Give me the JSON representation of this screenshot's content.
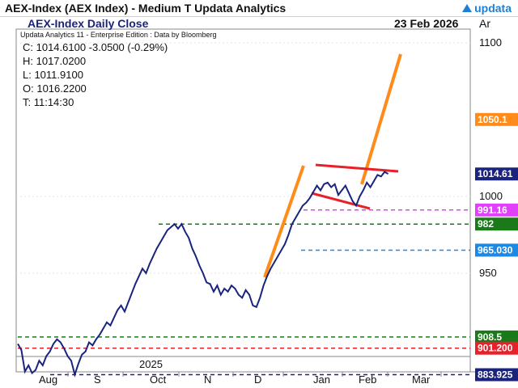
{
  "window": {
    "title": "AEX-Index (AEX Index) - Medium T  Updata Analytics",
    "brand": "updata"
  },
  "chart_header": {
    "subtitle": "AEX-Index Daily Close",
    "date": "23 Feb 2026",
    "axis_label": "Ar",
    "credit": "Updata Analytics 11 - Enterprise Edition : Data by Bloomberg"
  },
  "ohlc": [
    "C: 1014.6100  -3.0500 (-0.29%)",
    "H: 1017.0200",
    "L: 1011.9100",
    "O: 1016.2200",
    "T: 11:14:30"
  ],
  "colors": {
    "series": "#1a237e",
    "orange": "#ff8c1a",
    "red_trend": "#e8202a",
    "green": "#1a7a1a",
    "blue_dashed": "#1e88e5",
    "magenta": "#e040fb",
    "red_dashed": "#e8202a",
    "navy_dashed": "#1a237e"
  },
  "chart_data": {
    "type": "line",
    "ylim": [
      870,
      1110
    ],
    "y_ticks": [
      1100,
      1000,
      950
    ],
    "x_year_label": "2025",
    "x_months": [
      "Aug",
      "S",
      "Oct",
      "N",
      "D",
      "Jan",
      "Feb",
      "Mar"
    ],
    "series": [
      {
        "values": [
          [
            0,
            904
          ],
          [
            2,
            900
          ],
          [
            4,
            886
          ],
          [
            6,
            890
          ],
          [
            8,
            885
          ],
          [
            10,
            887
          ],
          [
            12,
            893
          ],
          [
            14,
            890
          ],
          [
            16,
            896
          ],
          [
            18,
            899
          ],
          [
            20,
            904
          ],
          [
            22,
            907
          ],
          [
            24,
            905
          ],
          [
            26,
            901
          ],
          [
            28,
            896
          ],
          [
            30,
            893
          ],
          [
            32,
            884
          ],
          [
            34,
            891
          ],
          [
            36,
            897
          ],
          [
            38,
            899
          ],
          [
            40,
            905
          ],
          [
            42,
            903
          ],
          [
            44,
            907
          ],
          [
            46,
            910
          ],
          [
            48,
            914
          ],
          [
            50,
            918
          ],
          [
            52,
            916
          ],
          [
            54,
            921
          ],
          [
            56,
            926
          ],
          [
            58,
            929
          ],
          [
            60,
            925
          ],
          [
            62,
            931
          ],
          [
            64,
            937
          ],
          [
            66,
            943
          ],
          [
            68,
            948
          ],
          [
            70,
            953
          ],
          [
            72,
            950
          ],
          [
            74,
            956
          ],
          [
            76,
            961
          ],
          [
            78,
            966
          ],
          [
            80,
            970
          ],
          [
            82,
            974
          ],
          [
            84,
            978
          ],
          [
            86,
            980
          ],
          [
            88,
            982
          ],
          [
            90,
            979
          ],
          [
            92,
            982
          ],
          [
            94,
            977
          ],
          [
            96,
            973
          ],
          [
            98,
            966
          ],
          [
            100,
            961
          ],
          [
            102,
            955
          ],
          [
            104,
            950
          ],
          [
            106,
            944
          ],
          [
            108,
            943
          ],
          [
            110,
            938
          ],
          [
            112,
            942
          ],
          [
            114,
            936
          ],
          [
            116,
            940
          ],
          [
            118,
            938
          ],
          [
            120,
            942
          ],
          [
            122,
            940
          ],
          [
            124,
            936
          ],
          [
            126,
            934
          ],
          [
            128,
            939
          ],
          [
            130,
            936
          ],
          [
            132,
            929
          ],
          [
            134,
            928
          ],
          [
            136,
            934
          ],
          [
            138,
            942
          ],
          [
            140,
            948
          ],
          [
            142,
            953
          ],
          [
            144,
            957
          ],
          [
            146,
            961
          ],
          [
            148,
            965
          ],
          [
            150,
            969
          ],
          [
            152,
            975
          ],
          [
            154,
            982
          ],
          [
            156,
            986
          ],
          [
            158,
            990
          ],
          [
            160,
            994
          ],
          [
            162,
            996
          ],
          [
            164,
            999
          ],
          [
            166,
            1003
          ],
          [
            168,
            1007
          ],
          [
            170,
            1004
          ],
          [
            172,
            1008
          ],
          [
            174,
            1009
          ],
          [
            176,
            1006
          ],
          [
            178,
            1008
          ],
          [
            180,
            1001
          ],
          [
            182,
            1004
          ],
          [
            184,
            1007
          ],
          [
            186,
            1002
          ],
          [
            188,
            997
          ],
          [
            190,
            994
          ],
          [
            192,
            1000
          ],
          [
            194,
            1004
          ],
          [
            196,
            1009
          ],
          [
            198,
            1006
          ],
          [
            200,
            1010
          ],
          [
            202,
            1014
          ],
          [
            204,
            1013
          ],
          [
            206,
            1016
          ],
          [
            208,
            1014.61
          ]
        ]
      }
    ],
    "levels": [
      {
        "value": 1050.1,
        "label": "1050.1",
        "color": "#ff8c1a",
        "dashed": false
      },
      {
        "value": 1014.61,
        "label": "1014.61",
        "color": "#1a237e",
        "dashed": false
      },
      {
        "value": 991.16,
        "label": "991.16",
        "color": "#e040fb",
        "dashed": true
      },
      {
        "value": 982,
        "label": "982",
        "color": "#1a7a1a",
        "dashed": true
      },
      {
        "value": 965.03,
        "label": "965.030",
        "color": "#1e88e5",
        "dashed": true
      },
      {
        "value": 908.5,
        "label": "908.5",
        "color": "#1a7a1a",
        "dashed": true
      },
      {
        "value": 901.2,
        "label": "901.200",
        "color": "#e8202a",
        "dashed": true
      },
      {
        "value": 883.925,
        "label": "883.925",
        "color": "#1a237e",
        "dashed": true
      }
    ]
  }
}
